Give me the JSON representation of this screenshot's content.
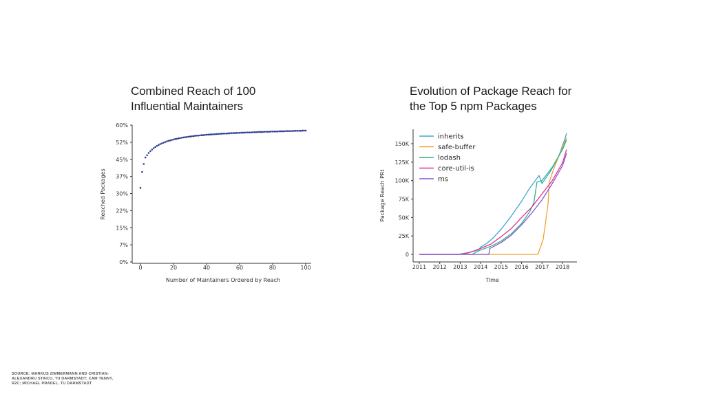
{
  "source_note": "SOURCE: MARKUS ZIMMERMANN AND CRISTIAN-ALEXANDRU STAICU, TU DARMSTADT; CAM TENNY, R2C; MICHAEL PRADEL, TU DARMSTADT",
  "chart_data": [
    {
      "type": "scatter",
      "title": "Combined Reach of 100\nInfluential Maintainers",
      "xlabel": "Number of Maintainers Ordered by Reach",
      "ylabel": "Reached Packages",
      "xlim": [
        0,
        100
      ],
      "ylim": [
        0,
        60
      ],
      "xticks": [
        0,
        20,
        40,
        60,
        80,
        100
      ],
      "yticks": [
        "0%",
        "7%",
        "15%",
        "22%",
        "30%",
        "37%",
        "45%",
        "52%",
        "60%"
      ],
      "ytick_values": [
        0,
        7.5,
        15,
        22.5,
        30,
        37.5,
        45,
        52.5,
        60
      ],
      "grid": false,
      "marker_color": "#2e3f8f",
      "points": {
        "x_start": 0,
        "x_end": 100,
        "y_values": [
          32.5,
          39.5,
          43.0,
          45.8,
          46.8,
          47.8,
          48.6,
          49.3,
          49.9,
          50.4,
          50.9,
          51.3,
          51.7,
          52.0,
          52.3,
          52.6,
          52.9,
          53.1,
          53.3,
          53.5,
          53.7,
          53.9,
          54.0,
          54.2,
          54.3,
          54.5,
          54.6,
          54.7,
          54.8,
          54.9,
          55.0,
          55.1,
          55.2,
          55.3,
          55.4,
          55.4,
          55.5,
          55.6,
          55.6,
          55.7,
          55.8,
          55.8,
          55.9,
          55.9,
          56.0,
          56.0,
          56.1,
          56.1,
          56.2,
          56.2,
          56.3,
          56.3,
          56.3,
          56.4,
          56.4,
          56.5,
          56.5,
          56.5,
          56.6,
          56.6,
          56.6,
          56.7,
          56.7,
          56.7,
          56.8,
          56.8,
          56.8,
          56.8,
          56.9,
          56.9,
          56.9,
          57.0,
          57.0,
          57.0,
          57.0,
          57.1,
          57.1,
          57.1,
          57.1,
          57.2,
          57.2,
          57.2,
          57.2,
          57.2,
          57.3,
          57.3,
          57.3,
          57.3,
          57.4,
          57.4,
          57.4,
          57.4,
          57.4,
          57.5,
          57.5,
          57.5,
          57.5,
          57.5,
          57.6,
          57.6,
          57.6
        ]
      }
    },
    {
      "type": "line",
      "title": "Evolution of Package Reach for\nthe Top 5 npm Packages",
      "xlabel": "Time",
      "ylabel": "Package Reach PRt",
      "xlim": [
        2010.8,
        2018.4
      ],
      "ylim": [
        -5000,
        170000
      ],
      "xticks": [
        2011,
        2012,
        2013,
        2014,
        2015,
        2016,
        2017,
        2018
      ],
      "yticks": [
        "0",
        "25K",
        "50K",
        "75K",
        "100K",
        "125K",
        "150K"
      ],
      "ytick_values": [
        0,
        25000,
        50000,
        75000,
        100000,
        125000,
        150000
      ],
      "grid": false,
      "legend": "top-left",
      "series": [
        {
          "name": "inherits",
          "color": "#3fa7d6",
          "x": [
            2011,
            2012.9,
            2013.3,
            2013.6,
            2013.9,
            2014.0,
            2014.3,
            2014.6,
            2015.0,
            2015.5,
            2016.0,
            2016.4,
            2016.7,
            2016.85,
            2017.0,
            2017.4,
            2017.8,
            2018.1,
            2018.2
          ],
          "y": [
            0,
            0,
            2000,
            4000,
            6000,
            10000,
            15000,
            22000,
            34000,
            52000,
            72000,
            90000,
            101000,
            107000,
            96000,
            112000,
            132000,
            155000,
            164000
          ]
        },
        {
          "name": "safe-buffer",
          "color": "#f0a030",
          "x": [
            2011,
            2016.8,
            2016.9,
            2017.05,
            2017.15,
            2017.3,
            2017.35,
            2017.6,
            2017.9,
            2018.2
          ],
          "y": [
            0,
            0,
            8000,
            20000,
            38000,
            70000,
            98000,
            118000,
            138000,
            158000
          ]
        },
        {
          "name": "lodash",
          "color": "#2bb38a",
          "x": [
            2011,
            2013.6,
            2013.7,
            2014.0,
            2014.5,
            2015.0,
            2015.5,
            2016.0,
            2016.4,
            2016.6,
            2016.75,
            2017.0,
            2017.5,
            2018.0,
            2018.2
          ],
          "y": [
            0,
            0,
            2000,
            6000,
            11000,
            18000,
            28000,
            42000,
            58000,
            70000,
            98000,
            100000,
            118000,
            142000,
            155000
          ]
        },
        {
          "name": "core-util-is",
          "color": "#e0338e",
          "x": [
            2011,
            2013.0,
            2013.4,
            2013.8,
            2014.0,
            2014.5,
            2015.0,
            2015.5,
            2016.0,
            2016.5,
            2017.0,
            2017.5,
            2018.0,
            2018.2
          ],
          "y": [
            0,
            0,
            2000,
            6000,
            8000,
            14000,
            24000,
            35000,
            50000,
            64000,
            82000,
            100000,
            124000,
            142000
          ]
        },
        {
          "name": "ms",
          "color": "#8855d6",
          "x": [
            2011,
            2014.4,
            2014.45,
            2015.0,
            2015.5,
            2016.0,
            2016.5,
            2017.0,
            2017.5,
            2018.0,
            2018.2
          ],
          "y": [
            0,
            0,
            8000,
            16000,
            26000,
            40000,
            56000,
            74000,
            96000,
            120000,
            137000
          ]
        }
      ]
    }
  ]
}
